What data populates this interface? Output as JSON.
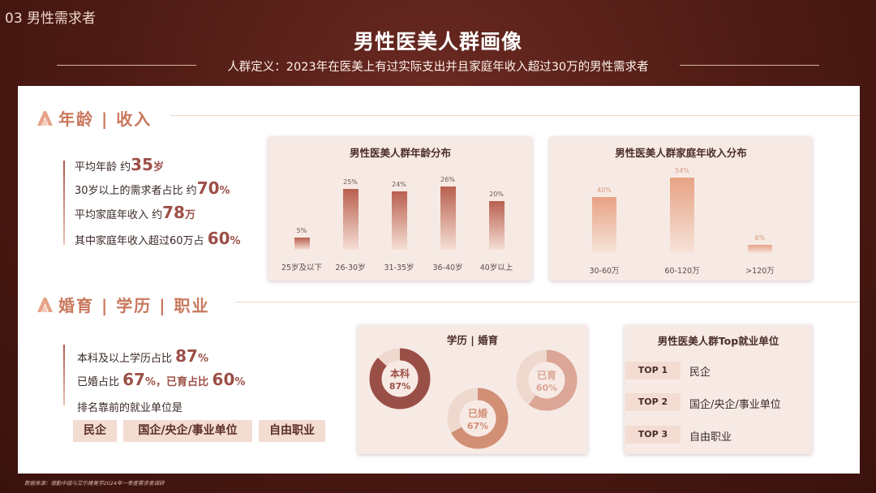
{
  "header": {
    "section_tag": "03 男性需求者",
    "title": "男性医美人群画像",
    "subtitle": "人群定义：2023年在医美上有过实际支出并且家庭年收入超过30万的男性需求者"
  },
  "age_income": {
    "heading": "年龄 | 收入",
    "stats": [
      {
        "label": "平均年龄 约",
        "value": "35",
        "unit": "岁"
      },
      {
        "label": "30岁以上的需求者占比 约",
        "value": "70",
        "unit": "%"
      },
      {
        "label": "平均家庭年收入 约",
        "value": "78",
        "unit": "万"
      },
      {
        "label": "其中家庭年收入超过60万占 ",
        "value": "60",
        "unit": "%"
      }
    ]
  },
  "marriage_edu": {
    "heading": "婚育 | 学历 | 职业",
    "stats": [
      {
        "label": "本科及以上学历占比 ",
        "value": "87",
        "unit": "%"
      },
      {
        "label": "已婚占比 ",
        "value": "67",
        "unit": "%，已育占比 ",
        "value2": "60",
        "unit2": "%"
      },
      {
        "label": "排名靠前的就业单位是"
      }
    ],
    "tags": [
      "民企",
      "国企/央企/事业单位",
      "自由职业"
    ]
  },
  "chart_data": [
    {
      "type": "bar",
      "title": "男性医美人群年龄分布",
      "categories": [
        "25岁及以下",
        "26-30岁",
        "31-35岁",
        "36-40岁",
        "40岁以上"
      ],
      "values": [
        5,
        25,
        24,
        26,
        20
      ],
      "labels": [
        "5%",
        "25%",
        "24%",
        "26%",
        "20%"
      ]
    },
    {
      "type": "bar",
      "title": "男性医美人群家庭年收入分布",
      "categories": [
        "30-60万",
        "60-120万",
        ">120万"
      ],
      "values": [
        40,
        54,
        6
      ],
      "labels": [
        "40%",
        "54%",
        "6%"
      ]
    },
    {
      "type": "pie",
      "title": "学历 | 婚育",
      "rings": [
        {
          "name": "本科",
          "value": 87,
          "label": "87%",
          "color": "#9a4f46"
        },
        {
          "name": "已婚",
          "value": 67,
          "label": "67%",
          "color": "#d18f76"
        },
        {
          "name": "已育",
          "value": 60,
          "label": "60%",
          "color": "#dca696"
        }
      ]
    }
  ],
  "top_employers": {
    "title": "男性医美人群Top就业单位",
    "items": [
      {
        "rank": "TOP 1",
        "name": "民企"
      },
      {
        "rank": "TOP 2",
        "name": "国企/央企/事业单位"
      },
      {
        "rank": "TOP 3",
        "name": "自由职业"
      }
    ]
  },
  "footnote": "数据来源：德勤中国与艾尔建美学2024年一季度需求者调研",
  "colors": {
    "accent": "#9c4f47",
    "heading": "#c9775c",
    "background": "#4a1712"
  }
}
